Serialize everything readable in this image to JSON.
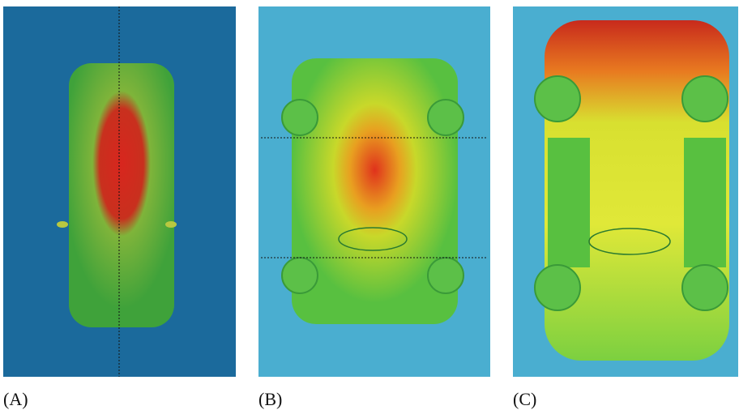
{
  "panels": [
    {
      "label": "(A)"
    },
    {
      "label": "(B)"
    },
    {
      "label": "(C)"
    }
  ]
}
